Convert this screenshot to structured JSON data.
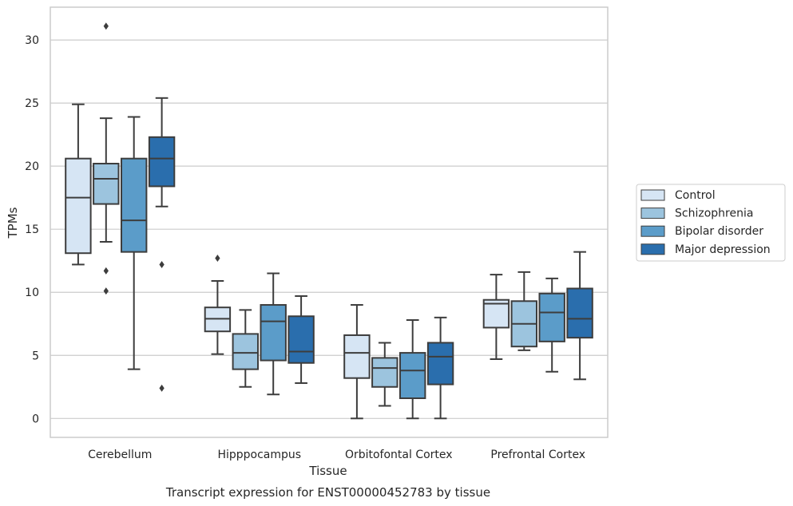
{
  "chart_data": {
    "type": "box",
    "caption": "Transcript expression for ENST00000452783 by tissue",
    "xlabel": "Tissue",
    "ylabel": "TPMs",
    "ylim": [
      -1.5,
      32.6
    ],
    "yticks": [
      0,
      5,
      10,
      15,
      20,
      25,
      30
    ],
    "grid": true,
    "legend_position": "right",
    "categories": [
      "Cerebellum",
      "Hipppocampus",
      "Orbitofontal Cortex",
      "Prefrontal Cortex"
    ],
    "series": [
      {
        "name": "Control",
        "color": "#d6e5f4",
        "boxes": [
          {
            "whisker_low": 12.2,
            "q1": 13.1,
            "median": 17.5,
            "q3": 20.6,
            "whisker_high": 24.9,
            "outliers": []
          },
          {
            "whisker_low": 5.1,
            "q1": 6.9,
            "median": 7.9,
            "q3": 8.8,
            "whisker_high": 10.9,
            "outliers": [
              12.7
            ]
          },
          {
            "whisker_low": 0.0,
            "q1": 3.2,
            "median": 5.2,
            "q3": 6.6,
            "whisker_high": 9.0,
            "outliers": []
          },
          {
            "whisker_low": 4.7,
            "q1": 7.2,
            "median": 9.1,
            "q3": 9.4,
            "whisker_high": 11.4,
            "outliers": []
          }
        ]
      },
      {
        "name": "Schizophrenia",
        "color": "#9cc4de",
        "boxes": [
          {
            "whisker_low": 14.0,
            "q1": 17.0,
            "median": 19.0,
            "q3": 20.2,
            "whisker_high": 23.8,
            "outliers": [
              11.7,
              10.1,
              31.1
            ]
          },
          {
            "whisker_low": 2.5,
            "q1": 3.9,
            "median": 5.2,
            "q3": 6.7,
            "whisker_high": 8.6,
            "outliers": []
          },
          {
            "whisker_low": 1.0,
            "q1": 2.5,
            "median": 4.0,
            "q3": 4.8,
            "whisker_high": 6.0,
            "outliers": []
          },
          {
            "whisker_low": 5.4,
            "q1": 5.7,
            "median": 7.5,
            "q3": 9.3,
            "whisker_high": 11.6,
            "outliers": []
          }
        ]
      },
      {
        "name": "Bipolar disorder",
        "color": "#5b9cc9",
        "boxes": [
          {
            "whisker_low": 3.9,
            "q1": 13.2,
            "median": 15.7,
            "q3": 20.6,
            "whisker_high": 23.9,
            "outliers": []
          },
          {
            "whisker_low": 1.9,
            "q1": 4.6,
            "median": 7.7,
            "q3": 9.0,
            "whisker_high": 11.5,
            "outliers": []
          },
          {
            "whisker_low": 0.0,
            "q1": 1.6,
            "median": 3.8,
            "q3": 5.2,
            "whisker_high": 7.8,
            "outliers": []
          },
          {
            "whisker_low": 3.7,
            "q1": 6.1,
            "median": 8.4,
            "q3": 9.9,
            "whisker_high": 11.1,
            "outliers": []
          }
        ]
      },
      {
        "name": "Major depression",
        "color": "#2a6ead",
        "boxes": [
          {
            "whisker_low": 16.8,
            "q1": 18.4,
            "median": 20.6,
            "q3": 22.3,
            "whisker_high": 25.4,
            "outliers": [
              12.2,
              2.4
            ]
          },
          {
            "whisker_low": 2.8,
            "q1": 4.4,
            "median": 5.3,
            "q3": 8.1,
            "whisker_high": 9.7,
            "outliers": []
          },
          {
            "whisker_low": 0.0,
            "q1": 2.7,
            "median": 4.9,
            "q3": 6.0,
            "whisker_high": 8.0,
            "outliers": []
          },
          {
            "whisker_low": 3.1,
            "q1": 6.4,
            "median": 7.9,
            "q3": 10.3,
            "whisker_high": 13.2,
            "outliers": []
          }
        ]
      }
    ]
  }
}
